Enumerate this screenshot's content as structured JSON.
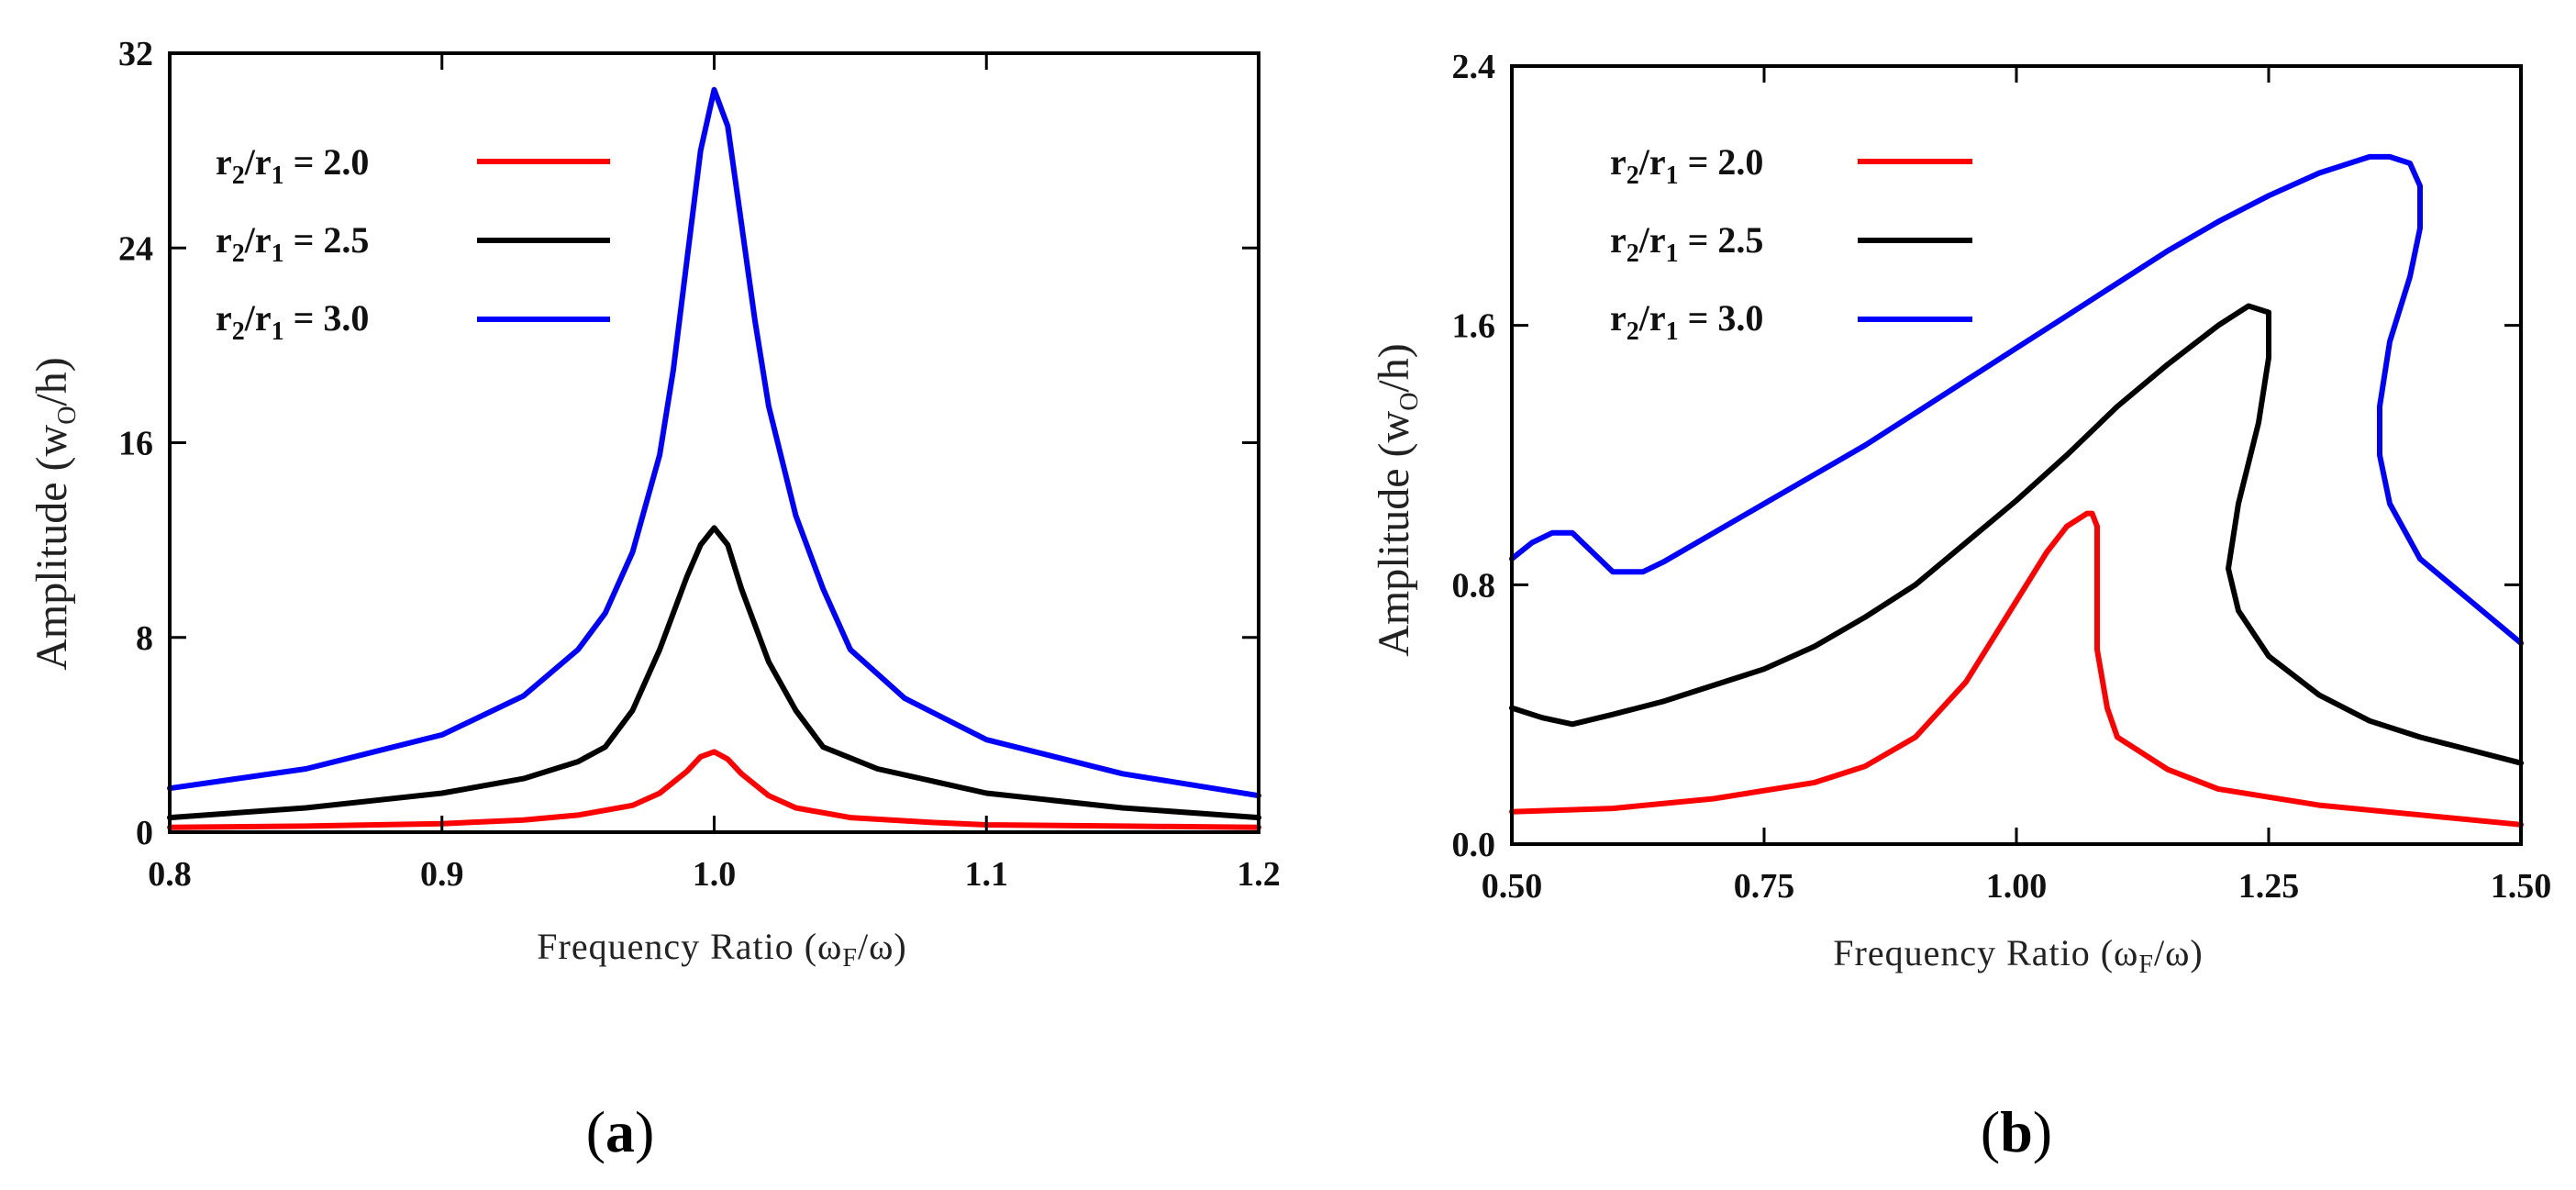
{
  "chart_data": [
    {
      "id": "a",
      "type": "line",
      "panel_open": "(",
      "panel_letter": "a",
      "panel_close": ")",
      "xlabel_main": "Frequency Ratio (ω",
      "xlabel_sub": "F",
      "xlabel_tail": "/ω)",
      "ylabel_main": "Amplitude (w",
      "ylabel_sub": "O",
      "ylabel_tail": "/h)",
      "xlim": [
        0.8,
        1.2
      ],
      "ylim": [
        0,
        32
      ],
      "xticks": [
        0.8,
        0.9,
        1.0,
        1.1,
        1.2
      ],
      "xtick_labels": [
        "0.8",
        "0.9",
        "1.0",
        "1.1",
        "1.2"
      ],
      "yticks": [
        0,
        8,
        16,
        24,
        32
      ],
      "ytick_labels": [
        "0",
        "8",
        "16",
        "24",
        "32"
      ],
      "legend": [
        {
          "ratio": "r",
          "sub1": "2",
          "slash": "/r",
          "sub2": "1",
          "eq": " = 2.0",
          "color": "#ff0000"
        },
        {
          "ratio": "r",
          "sub1": "2",
          "slash": "/r",
          "sub2": "1",
          "eq": " = 2.5",
          "color": "#000000"
        },
        {
          "ratio": "r",
          "sub1": "2",
          "slash": "/r",
          "sub2": "1",
          "eq": " = 3.0",
          "color": "#0000ff"
        }
      ],
      "series": [
        {
          "name": "r2/r1 = 2.0",
          "color": "#ff0000",
          "x": [
            0.8,
            0.85,
            0.9,
            0.93,
            0.95,
            0.97,
            0.98,
            0.99,
            0.995,
            1.0,
            1.005,
            1.01,
            1.02,
            1.03,
            1.05,
            1.08,
            1.1,
            1.15,
            1.2
          ],
          "y": [
            0.2,
            0.25,
            0.35,
            0.5,
            0.7,
            1.1,
            1.6,
            2.5,
            3.1,
            3.3,
            3.0,
            2.4,
            1.5,
            1.0,
            0.6,
            0.4,
            0.3,
            0.25,
            0.2
          ]
        },
        {
          "name": "r2/r1 = 2.5",
          "color": "#000000",
          "x": [
            0.8,
            0.85,
            0.9,
            0.93,
            0.95,
            0.96,
            0.97,
            0.98,
            0.99,
            0.995,
            1.0,
            1.005,
            1.01,
            1.02,
            1.03,
            1.04,
            1.06,
            1.1,
            1.15,
            1.2
          ],
          "y": [
            0.6,
            1.0,
            1.6,
            2.2,
            2.9,
            3.5,
            5.0,
            7.5,
            10.5,
            11.8,
            12.5,
            11.8,
            10.0,
            7.0,
            5.0,
            3.5,
            2.6,
            1.6,
            1.0,
            0.6
          ]
        },
        {
          "name": "r2/r1 = 3.0",
          "color": "#0000ff",
          "x": [
            0.8,
            0.85,
            0.9,
            0.93,
            0.95,
            0.96,
            0.97,
            0.98,
            0.985,
            0.99,
            0.995,
            1.0,
            1.005,
            1.01,
            1.015,
            1.02,
            1.03,
            1.04,
            1.05,
            1.07,
            1.1,
            1.15,
            1.2
          ],
          "y": [
            1.8,
            2.6,
            4.0,
            5.6,
            7.5,
            9.0,
            11.5,
            15.5,
            19.0,
            23.5,
            28.0,
            30.5,
            29.0,
            25.0,
            21.0,
            17.5,
            13.0,
            10.0,
            7.5,
            5.5,
            3.8,
            2.4,
            1.5
          ]
        }
      ]
    },
    {
      "id": "b",
      "type": "line",
      "panel_open": "(",
      "panel_letter": "b",
      "panel_close": ")",
      "xlabel_main": "Frequency Ratio (ω",
      "xlabel_sub": "F",
      "xlabel_tail": "/ω)",
      "ylabel_main": "Amplitude (w",
      "ylabel_sub": "O",
      "ylabel_tail": "/h)",
      "xlim": [
        0.5,
        1.5
      ],
      "ylim": [
        0,
        2.4
      ],
      "xticks": [
        0.5,
        0.75,
        1.0,
        1.25,
        1.5
      ],
      "xtick_labels": [
        "0.50",
        "0.75",
        "1.00",
        "1.25",
        "1.50"
      ],
      "yticks": [
        0,
        0.8,
        1.6,
        2.4
      ],
      "ytick_labels": [
        "0.0",
        "0.8",
        "1.6",
        "2.4"
      ],
      "legend": [
        {
          "ratio": "r",
          "sub1": "2",
          "slash": "/r",
          "sub2": "1",
          "eq": " = 2.0",
          "color": "#ff0000"
        },
        {
          "ratio": "r",
          "sub1": "2",
          "slash": "/r",
          "sub2": "1",
          "eq": " = 2.5",
          "color": "#000000"
        },
        {
          "ratio": "r",
          "sub1": "2",
          "slash": "/r",
          "sub2": "1",
          "eq": " = 3.0",
          "color": "#0000ff"
        }
      ],
      "series": [
        {
          "name": "r2/r1 = 2.0",
          "color": "#ff0000",
          "x": [
            0.5,
            0.6,
            0.7,
            0.8,
            0.85,
            0.9,
            0.95,
            1.0,
            1.03,
            1.05,
            1.07,
            1.075,
            1.08,
            1.08,
            1.09,
            1.1,
            1.15,
            1.2,
            1.3,
            1.4,
            1.5
          ],
          "y": [
            0.1,
            0.11,
            0.14,
            0.19,
            0.24,
            0.33,
            0.5,
            0.75,
            0.9,
            0.98,
            1.02,
            1.02,
            0.98,
            0.6,
            0.42,
            0.33,
            0.23,
            0.17,
            0.12,
            0.09,
            0.06
          ]
        },
        {
          "name": "r2/r1 = 2.5",
          "color": "#000000",
          "x": [
            0.5,
            0.53,
            0.56,
            0.6,
            0.65,
            0.7,
            0.75,
            0.8,
            0.85,
            0.9,
            0.95,
            1.0,
            1.05,
            1.1,
            1.15,
            1.2,
            1.23,
            1.25,
            1.25,
            1.24,
            1.22,
            1.21,
            1.22,
            1.25,
            1.3,
            1.35,
            1.4,
            1.45,
            1.5
          ],
          "y": [
            0.42,
            0.39,
            0.37,
            0.4,
            0.44,
            0.49,
            0.54,
            0.61,
            0.7,
            0.8,
            0.93,
            1.06,
            1.2,
            1.35,
            1.48,
            1.6,
            1.66,
            1.64,
            1.5,
            1.3,
            1.05,
            0.85,
            0.72,
            0.58,
            0.46,
            0.38,
            0.33,
            0.29,
            0.25
          ]
        },
        {
          "name": "r2/r1 = 3.0",
          "color": "#0000ff",
          "x": [
            0.5,
            0.52,
            0.54,
            0.56,
            0.58,
            0.6,
            0.63,
            0.65,
            0.7,
            0.75,
            0.8,
            0.85,
            0.9,
            0.95,
            1.0,
            1.05,
            1.1,
            1.15,
            1.2,
            1.25,
            1.3,
            1.35,
            1.37,
            1.39,
            1.4,
            1.4,
            1.39,
            1.37,
            1.36,
            1.36,
            1.37,
            1.4,
            1.45,
            1.5
          ],
          "y": [
            0.88,
            0.93,
            0.96,
            0.96,
            0.9,
            0.84,
            0.84,
            0.87,
            0.96,
            1.05,
            1.14,
            1.23,
            1.33,
            1.43,
            1.53,
            1.63,
            1.73,
            1.83,
            1.92,
            2.0,
            2.07,
            2.12,
            2.12,
            2.1,
            2.03,
            1.9,
            1.75,
            1.55,
            1.35,
            1.2,
            1.05,
            0.88,
            0.75,
            0.62
          ]
        }
      ]
    }
  ]
}
